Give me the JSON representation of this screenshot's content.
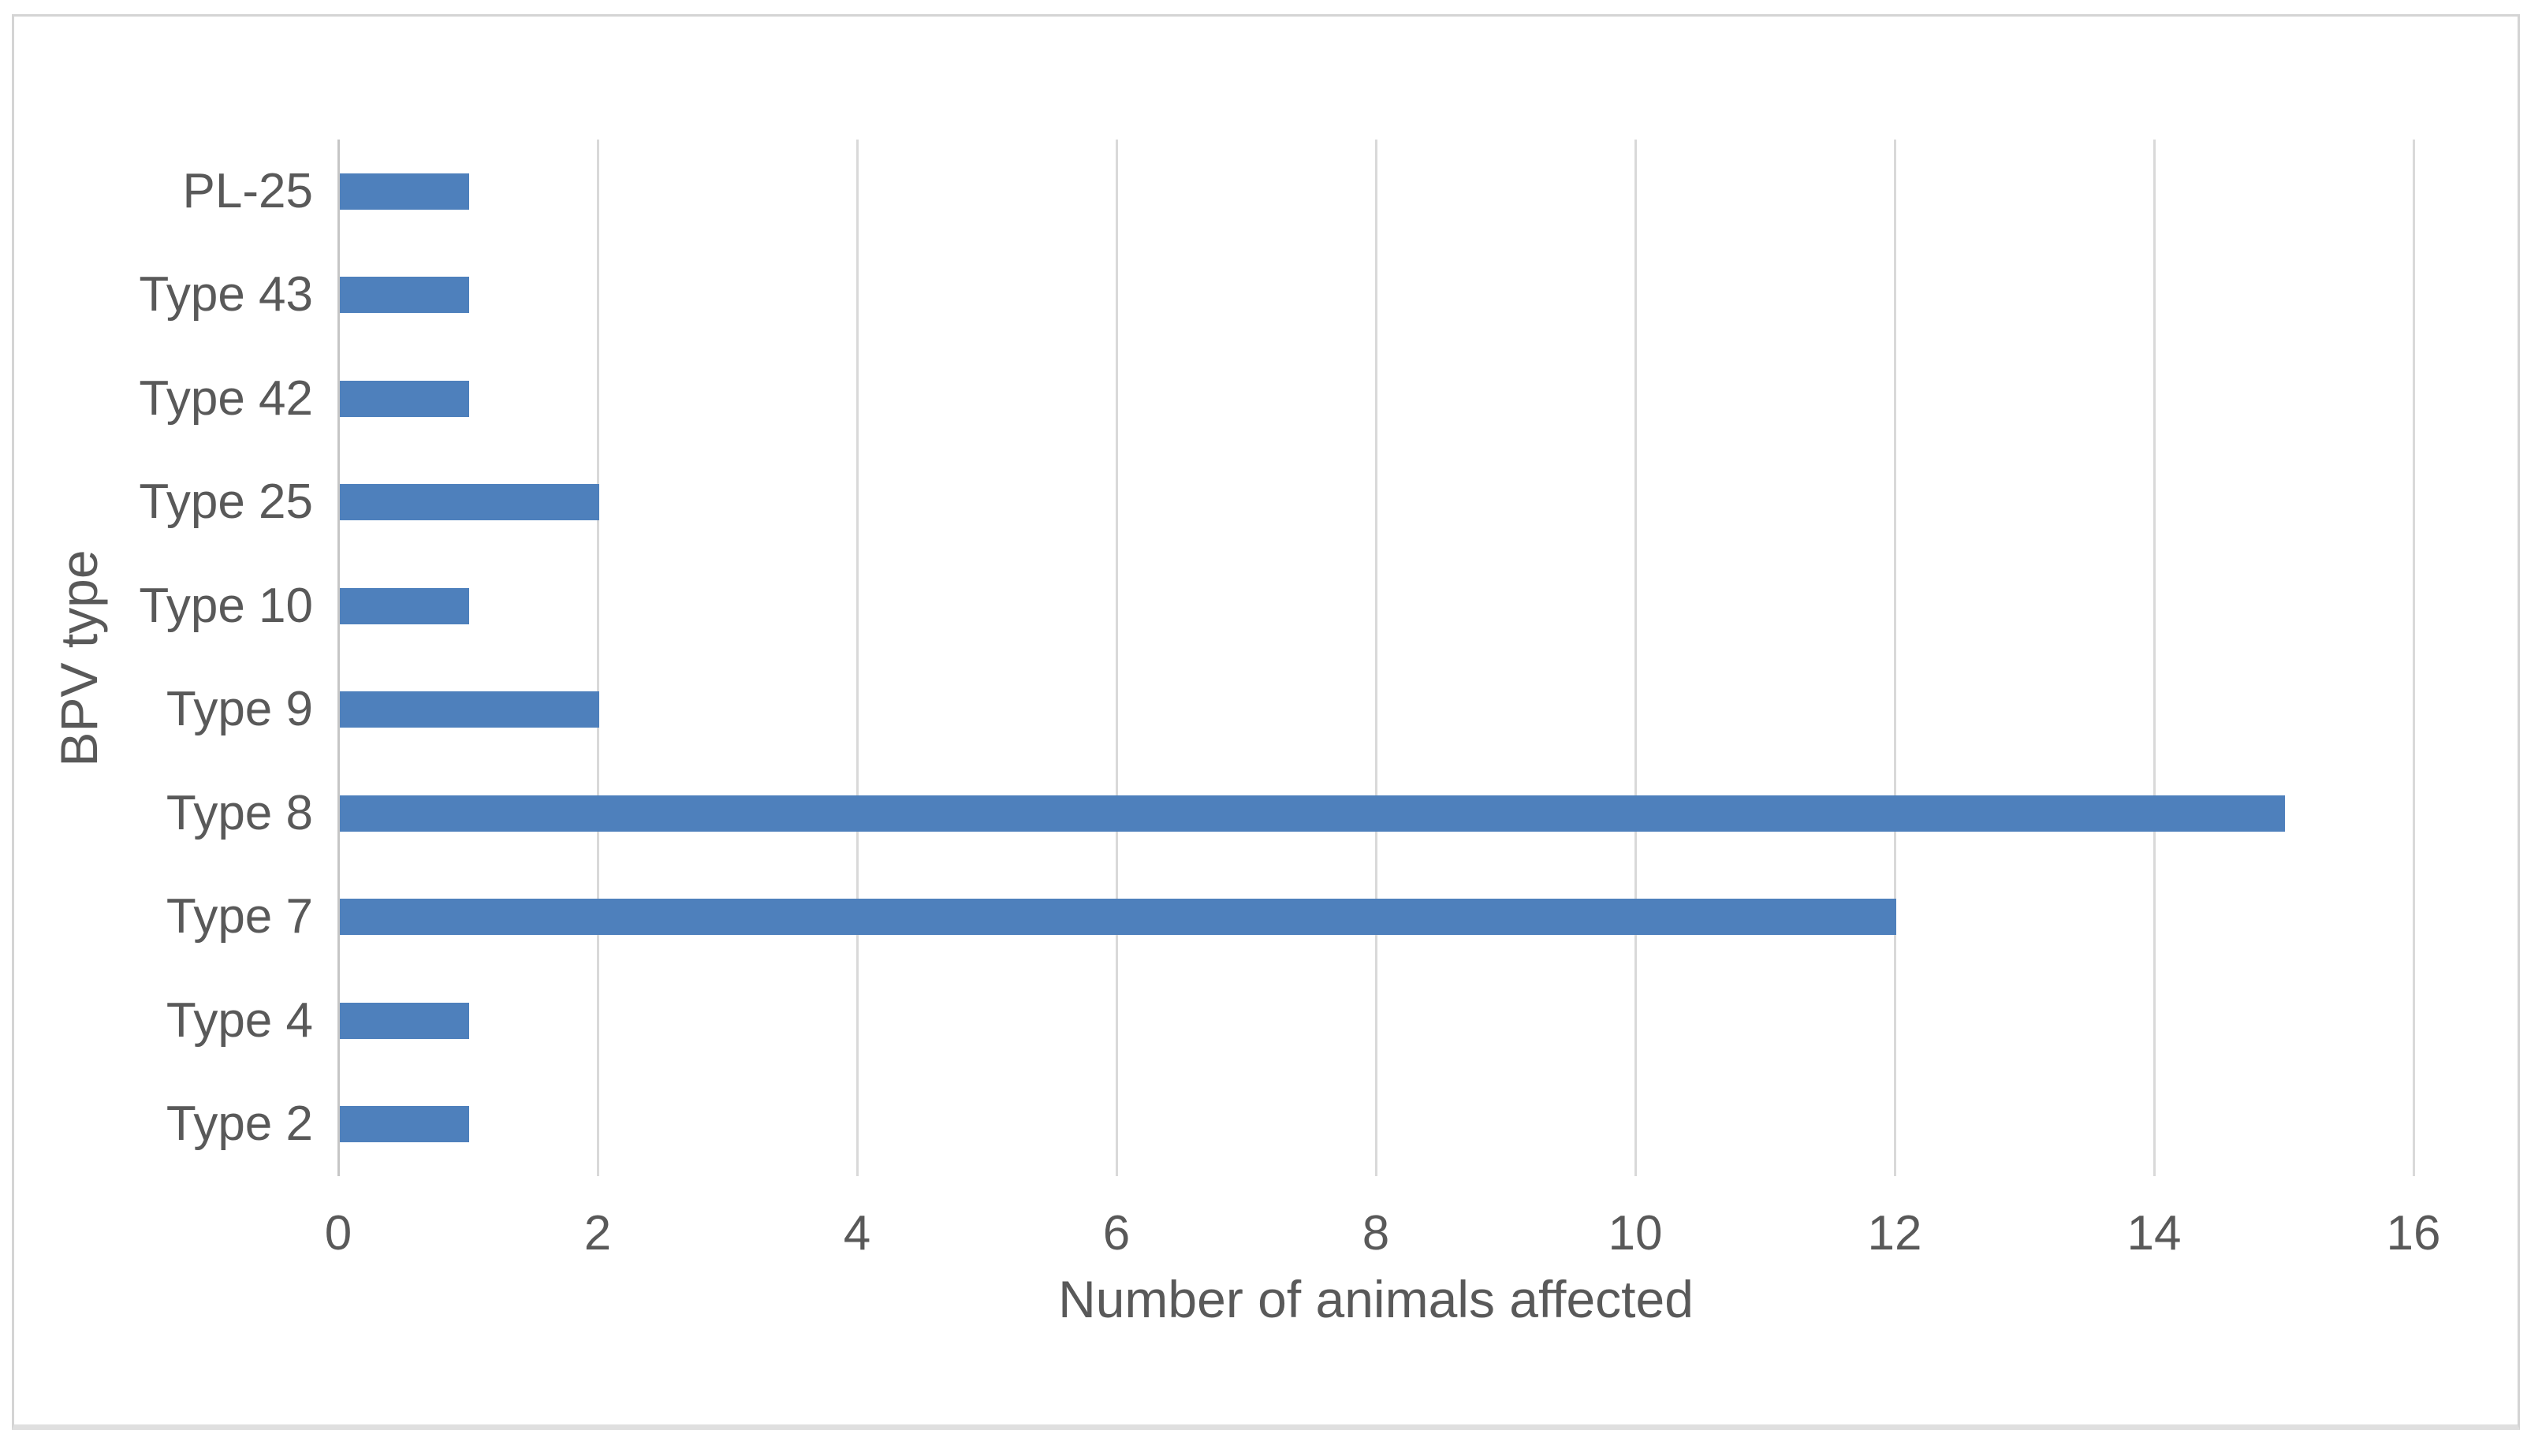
{
  "figure": {
    "background_color": "#ffffff",
    "border_color": "#d4d4d4"
  },
  "chart_data": {
    "type": "bar",
    "orientation": "horizontal",
    "title": "",
    "categories": [
      "PL-25",
      "Type 43",
      "Type 42",
      "Type 25",
      "Type 10",
      "Type 9",
      "Type 8",
      "Type 7",
      "Type 4",
      "Type 2"
    ],
    "values": [
      1,
      1,
      1,
      2,
      1,
      2,
      15,
      12,
      1,
      1
    ],
    "xlabel": "Number of animals affected",
    "ylabel": "BPV type",
    "xlim": [
      0,
      16
    ],
    "xticks": [
      0,
      2,
      4,
      6,
      8,
      10,
      12,
      14,
      16
    ],
    "grid": true,
    "legend": false,
    "bar_color": "#4e80bc",
    "gridline_color": "#d9d9d9",
    "axis_line_color": "#c6c6c6",
    "text_color": "#595959"
  }
}
